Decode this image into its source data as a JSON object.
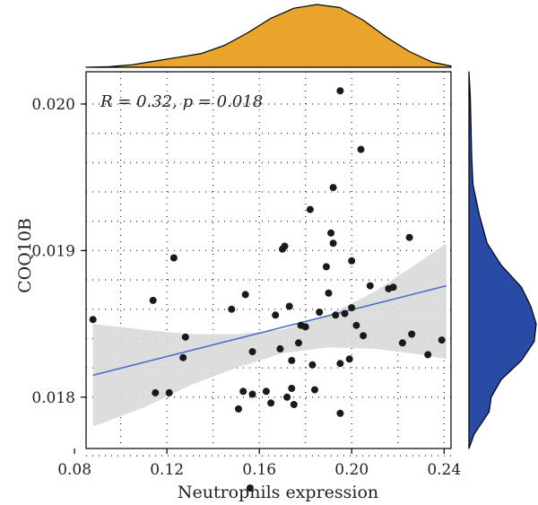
{
  "chart_data": {
    "type": "scatter",
    "xlabel": "Neutrophils expression",
    "ylabel": "COQ10B",
    "annotation": "R = 0.32, p = 0.018",
    "xlim": [
      0.085,
      0.243
    ],
    "ylim": [
      0.01765,
      0.02022
    ],
    "x_ticks": [
      0.08,
      0.12,
      0.16,
      0.2,
      0.24
    ],
    "x_tick_labels": [
      "0.08",
      "0.12",
      "0.16",
      "0.20",
      "0.24"
    ],
    "y_ticks": [
      0.018,
      0.019,
      0.02
    ],
    "y_tick_labels": [
      "0.018",
      "0.019",
      "0.020"
    ],
    "grid": true,
    "regression": {
      "x0": 0.088,
      "y0": 0.01815,
      "x1": 0.241,
      "y1": 0.01876,
      "color": "#4472c4"
    },
    "confidence_band": {
      "x": [
        0.088,
        0.11,
        0.13,
        0.15,
        0.17,
        0.19,
        0.21,
        0.23,
        0.241
      ],
      "lower": [
        0.0178,
        0.01793,
        0.01808,
        0.0182,
        0.0183,
        0.01834,
        0.01833,
        0.01829,
        0.01826
      ],
      "upper": [
        0.0185,
        0.01846,
        0.01843,
        0.01843,
        0.01846,
        0.01856,
        0.01872,
        0.01893,
        0.01905
      ],
      "color": "#d9d9d9"
    },
    "points": [
      {
        "x": 0.088,
        "y": 0.01853
      },
      {
        "x": 0.114,
        "y": 0.01866
      },
      {
        "x": 0.115,
        "y": 0.01803
      },
      {
        "x": 0.121,
        "y": 0.01803
      },
      {
        "x": 0.123,
        "y": 0.01895
      },
      {
        "x": 0.127,
        "y": 0.01827
      },
      {
        "x": 0.128,
        "y": 0.01841
      },
      {
        "x": 0.148,
        "y": 0.0186
      },
      {
        "x": 0.151,
        "y": 0.01792
      },
      {
        "x": 0.153,
        "y": 0.01804
      },
      {
        "x": 0.154,
        "y": 0.0187
      },
      {
        "x": 0.156,
        "y": 0.01738
      },
      {
        "x": 0.157,
        "y": 0.01802
      },
      {
        "x": 0.157,
        "y": 0.01831
      },
      {
        "x": 0.163,
        "y": 0.01804
      },
      {
        "x": 0.165,
        "y": 0.01796
      },
      {
        "x": 0.167,
        "y": 0.01856
      },
      {
        "x": 0.169,
        "y": 0.01833
      },
      {
        "x": 0.17,
        "y": 0.01901
      },
      {
        "x": 0.171,
        "y": 0.01903
      },
      {
        "x": 0.172,
        "y": 0.018
      },
      {
        "x": 0.173,
        "y": 0.01862
      },
      {
        "x": 0.174,
        "y": 0.01806
      },
      {
        "x": 0.174,
        "y": 0.01825
      },
      {
        "x": 0.175,
        "y": 0.01795
      },
      {
        "x": 0.177,
        "y": 0.01837
      },
      {
        "x": 0.178,
        "y": 0.01849
      },
      {
        "x": 0.18,
        "y": 0.01848
      },
      {
        "x": 0.182,
        "y": 0.01928
      },
      {
        "x": 0.183,
        "y": 0.01822
      },
      {
        "x": 0.184,
        "y": 0.01805
      },
      {
        "x": 0.186,
        "y": 0.01858
      },
      {
        "x": 0.189,
        "y": 0.01889
      },
      {
        "x": 0.19,
        "y": 0.01871
      },
      {
        "x": 0.191,
        "y": 0.01912
      },
      {
        "x": 0.192,
        "y": 0.01943
      },
      {
        "x": 0.192,
        "y": 0.01905
      },
      {
        "x": 0.193,
        "y": 0.01856
      },
      {
        "x": 0.195,
        "y": 0.02009
      },
      {
        "x": 0.195,
        "y": 0.01823
      },
      {
        "x": 0.195,
        "y": 0.01789
      },
      {
        "x": 0.197,
        "y": 0.01857
      },
      {
        "x": 0.199,
        "y": 0.01826
      },
      {
        "x": 0.2,
        "y": 0.01861
      },
      {
        "x": 0.2,
        "y": 0.01893
      },
      {
        "x": 0.202,
        "y": 0.01849
      },
      {
        "x": 0.204,
        "y": 0.01969
      },
      {
        "x": 0.205,
        "y": 0.01842
      },
      {
        "x": 0.208,
        "y": 0.01876
      },
      {
        "x": 0.216,
        "y": 0.01874
      },
      {
        "x": 0.218,
        "y": 0.01875
      },
      {
        "x": 0.222,
        "y": 0.01837
      },
      {
        "x": 0.225,
        "y": 0.01909
      },
      {
        "x": 0.226,
        "y": 0.01843
      },
      {
        "x": 0.233,
        "y": 0.01829
      },
      {
        "x": 0.239,
        "y": 0.01839
      }
    ],
    "top_density": {
      "color": "#e9a52b",
      "x": [
        0.085,
        0.095,
        0.105,
        0.115,
        0.125,
        0.135,
        0.145,
        0.155,
        0.165,
        0.175,
        0.185,
        0.195,
        0.205,
        0.215,
        0.225,
        0.235,
        0.243
      ],
      "y": [
        0.0,
        0.01,
        0.04,
        0.1,
        0.16,
        0.22,
        0.35,
        0.55,
        0.78,
        0.94,
        1.0,
        0.95,
        0.75,
        0.48,
        0.25,
        0.08,
        0.02
      ]
    },
    "right_density": {
      "color": "#2a4ba5",
      "y": [
        0.01765,
        0.01775,
        0.0179,
        0.018,
        0.01812,
        0.01825,
        0.01838,
        0.0185,
        0.01862,
        0.01875,
        0.0189,
        0.01905,
        0.01925,
        0.01945,
        0.01965,
        0.01985,
        0.02005,
        0.02022
      ],
      "density": [
        0.0,
        0.08,
        0.3,
        0.33,
        0.48,
        0.78,
        0.97,
        1.0,
        0.92,
        0.78,
        0.48,
        0.27,
        0.15,
        0.06,
        0.04,
        0.03,
        0.02,
        0.0
      ]
    }
  }
}
